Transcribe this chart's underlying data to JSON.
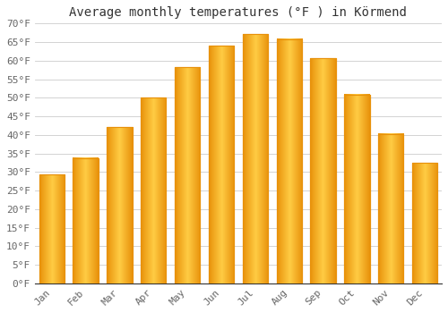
{
  "title": "Average monthly temperatures (°F ) in Körmend",
  "months": [
    "Jan",
    "Feb",
    "Mar",
    "Apr",
    "May",
    "Jun",
    "Jul",
    "Aug",
    "Sep",
    "Oct",
    "Nov",
    "Dec"
  ],
  "values": [
    29.3,
    33.8,
    42.1,
    50.0,
    58.3,
    64.0,
    67.1,
    65.8,
    60.6,
    50.9,
    40.3,
    32.5
  ],
  "bar_color_center": "#FFB733",
  "bar_color_edge": "#E8910A",
  "ylim": [
    0,
    70
  ],
  "yticks": [
    0,
    5,
    10,
    15,
    20,
    25,
    30,
    35,
    40,
    45,
    50,
    55,
    60,
    65,
    70
  ],
  "ytick_labels": [
    "0°F",
    "5°F",
    "10°F",
    "15°F",
    "20°F",
    "25°F",
    "30°F",
    "35°F",
    "40°F",
    "45°F",
    "50°F",
    "55°F",
    "60°F",
    "65°F",
    "70°F"
  ],
  "background_color": "#FFFFFF",
  "plot_bg_color": "#FFFFFF",
  "grid_color": "#CCCCCC",
  "title_fontsize": 10,
  "tick_fontsize": 8,
  "font_family": "monospace",
  "bar_width": 0.75
}
